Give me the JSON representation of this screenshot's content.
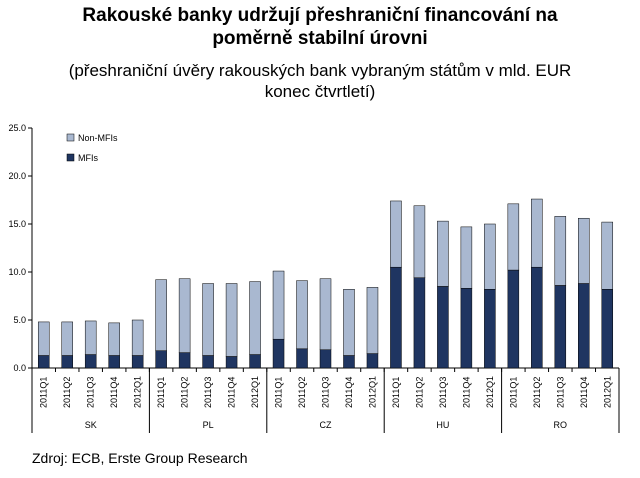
{
  "title_line1": "Rakouské banky udržují přeshraniční financování na",
  "title_line2": "poměrně stabilní úrovni",
  "subtitle_line1": "(přeshraniční úvěry rakouských bank vybraným státům v mld. EUR",
  "subtitle_line2": "konec čtvrtletí)",
  "source": "Zdroj: ECB, Erste Group Research",
  "colors": {
    "non_mfi": "#a9b8d0",
    "mfi": "#1f3561",
    "axis": "#000000"
  },
  "chart_data": {
    "type": "bar",
    "stacked": true,
    "ylim": [
      0,
      25
    ],
    "yticks": [
      "0.0",
      "5.0",
      "10.0",
      "15.0",
      "20.0",
      "25.0"
    ],
    "legend_position": "top-left",
    "groups": [
      "SK",
      "PL",
      "CZ",
      "HU",
      "RO"
    ],
    "quarters": [
      "2011Q1",
      "2011Q2",
      "2011Q3",
      "2011Q4",
      "2012Q1"
    ],
    "series": [
      {
        "name": "Non-MFIs",
        "values": [
          3.5,
          3.5,
          3.5,
          3.4,
          3.7,
          7.4,
          7.7,
          7.5,
          7.6,
          7.6,
          7.1,
          7.1,
          7.4,
          6.9,
          6.9,
          6.9,
          7.5,
          6.8,
          6.4,
          6.8,
          6.9,
          7.1,
          7.2,
          6.8,
          7.0
        ]
      },
      {
        "name": "MFIs",
        "values": [
          1.3,
          1.3,
          1.4,
          1.3,
          1.3,
          1.8,
          1.6,
          1.3,
          1.2,
          1.4,
          3.0,
          2.0,
          1.9,
          1.3,
          1.5,
          10.5,
          9.4,
          8.5,
          8.3,
          8.2,
          10.2,
          10.5,
          8.6,
          8.8,
          8.2
        ]
      }
    ]
  }
}
